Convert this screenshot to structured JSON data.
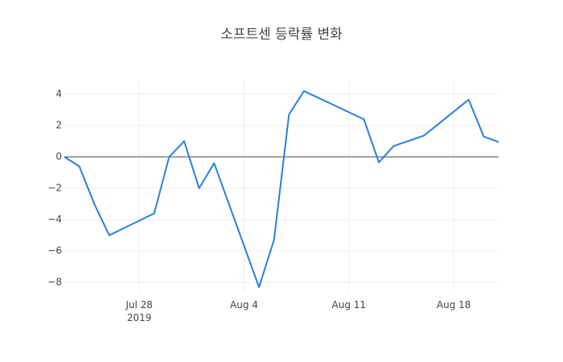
{
  "chart_data": {
    "type": "line",
    "title": "소프트센 등락률 변화",
    "x": [
      "2019-07-23",
      "2019-07-24",
      "2019-07-25",
      "2019-07-26",
      "2019-07-29",
      "2019-07-30",
      "2019-07-31",
      "2019-08-01",
      "2019-08-02",
      "2019-08-05",
      "2019-08-06",
      "2019-08-07",
      "2019-08-08",
      "2019-08-12",
      "2019-08-13",
      "2019-08-14",
      "2019-08-16",
      "2019-08-19",
      "2019-08-20",
      "2019-08-21"
    ],
    "series": [
      {
        "color": "#2a7fde",
        "values": [
          0,
          -0.6,
          -3.0,
          -5.0,
          -3.6,
          0,
          1.0,
          -2.0,
          -0.4,
          -8.3,
          -5.3,
          2.7,
          4.2,
          2.4,
          -0.35,
          0.7,
          1.35,
          3.65,
          1.3,
          0.95
        ]
      }
    ],
    "xlim": [
      "2019-07-23",
      "2019-08-21"
    ],
    "xticks": [
      {
        "value": "2019-07-28",
        "label": "Jul 28",
        "sublabel": "2019"
      },
      {
        "value": "2019-08-04",
        "label": "Aug 4"
      },
      {
        "value": "2019-08-11",
        "label": "Aug 11"
      },
      {
        "value": "2019-08-18",
        "label": "Aug 18"
      }
    ],
    "ylim": [
      -8.6,
      4.9
    ],
    "yticks": [
      {
        "value": -8,
        "label": "−8"
      },
      {
        "value": -6,
        "label": "−6"
      },
      {
        "value": -4,
        "label": "−4"
      },
      {
        "value": -2,
        "label": "−2"
      },
      0,
      2,
      4
    ],
    "grid": true,
    "zeroline": true
  }
}
